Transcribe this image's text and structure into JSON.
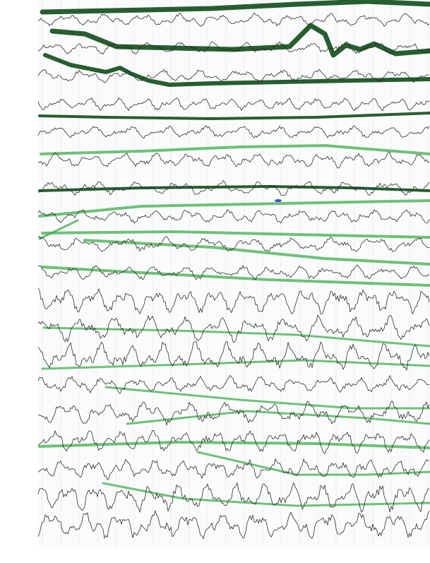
{
  "image": {
    "description_kind": "scanned paper chart recording",
    "trace_count": 19,
    "trace_color": "#2b2b2b",
    "marker_color": "#3fae49",
    "marker_dark_color": "#0f4d1a",
    "paper_color": "#fbfbfd",
    "grid_color": "#e3e6ec",
    "pen_mark_color": "#3355cc"
  }
}
